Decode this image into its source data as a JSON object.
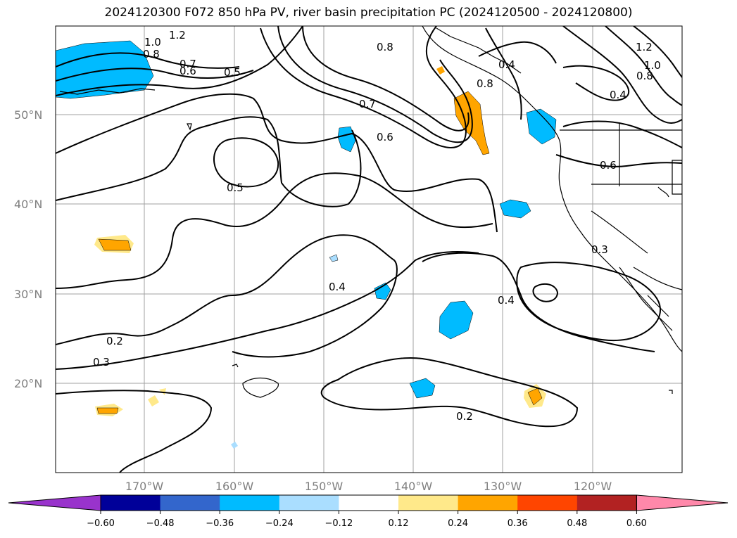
{
  "title": "2024120300 F072 850 hPa PV, river basin precipitation PC (2024120500 - 2024120800)",
  "map": {
    "lat_labels": [
      "50°N",
      "40°N",
      "30°N",
      "20°N"
    ],
    "lon_labels": [
      "170°W",
      "160°W",
      "150°W",
      "140°W",
      "130°W",
      "120°W"
    ],
    "contour_labels": [
      "1.2",
      "1.0",
      "0.8",
      "0.7",
      "0.6",
      "0.5",
      "0.8",
      "0.4",
      "0.7",
      "0.6",
      "0.5",
      "0.4",
      "0.4",
      "0.2",
      "0.3",
      "0.2",
      "1.2",
      "1.0",
      "0.8",
      "0.4",
      "0.6",
      "0.3",
      "0.8"
    ],
    "land_color": "#000000",
    "grid_color": "#a0a0a0"
  },
  "colorbar": {
    "colors": [
      "#9933cc",
      "#000099",
      "#3366cc",
      "#00bbff",
      "#aadeff",
      "#ffffff",
      "#ffe98a",
      "#ffa500",
      "#ff4500",
      "#b22222",
      "#ff88aa"
    ],
    "tick_labels": [
      "−0.60",
      "−0.48",
      "−0.36",
      "−0.24",
      "−0.12",
      "0.12",
      "0.24",
      "0.36",
      "0.48",
      "0.60"
    ],
    "extend": "both"
  }
}
